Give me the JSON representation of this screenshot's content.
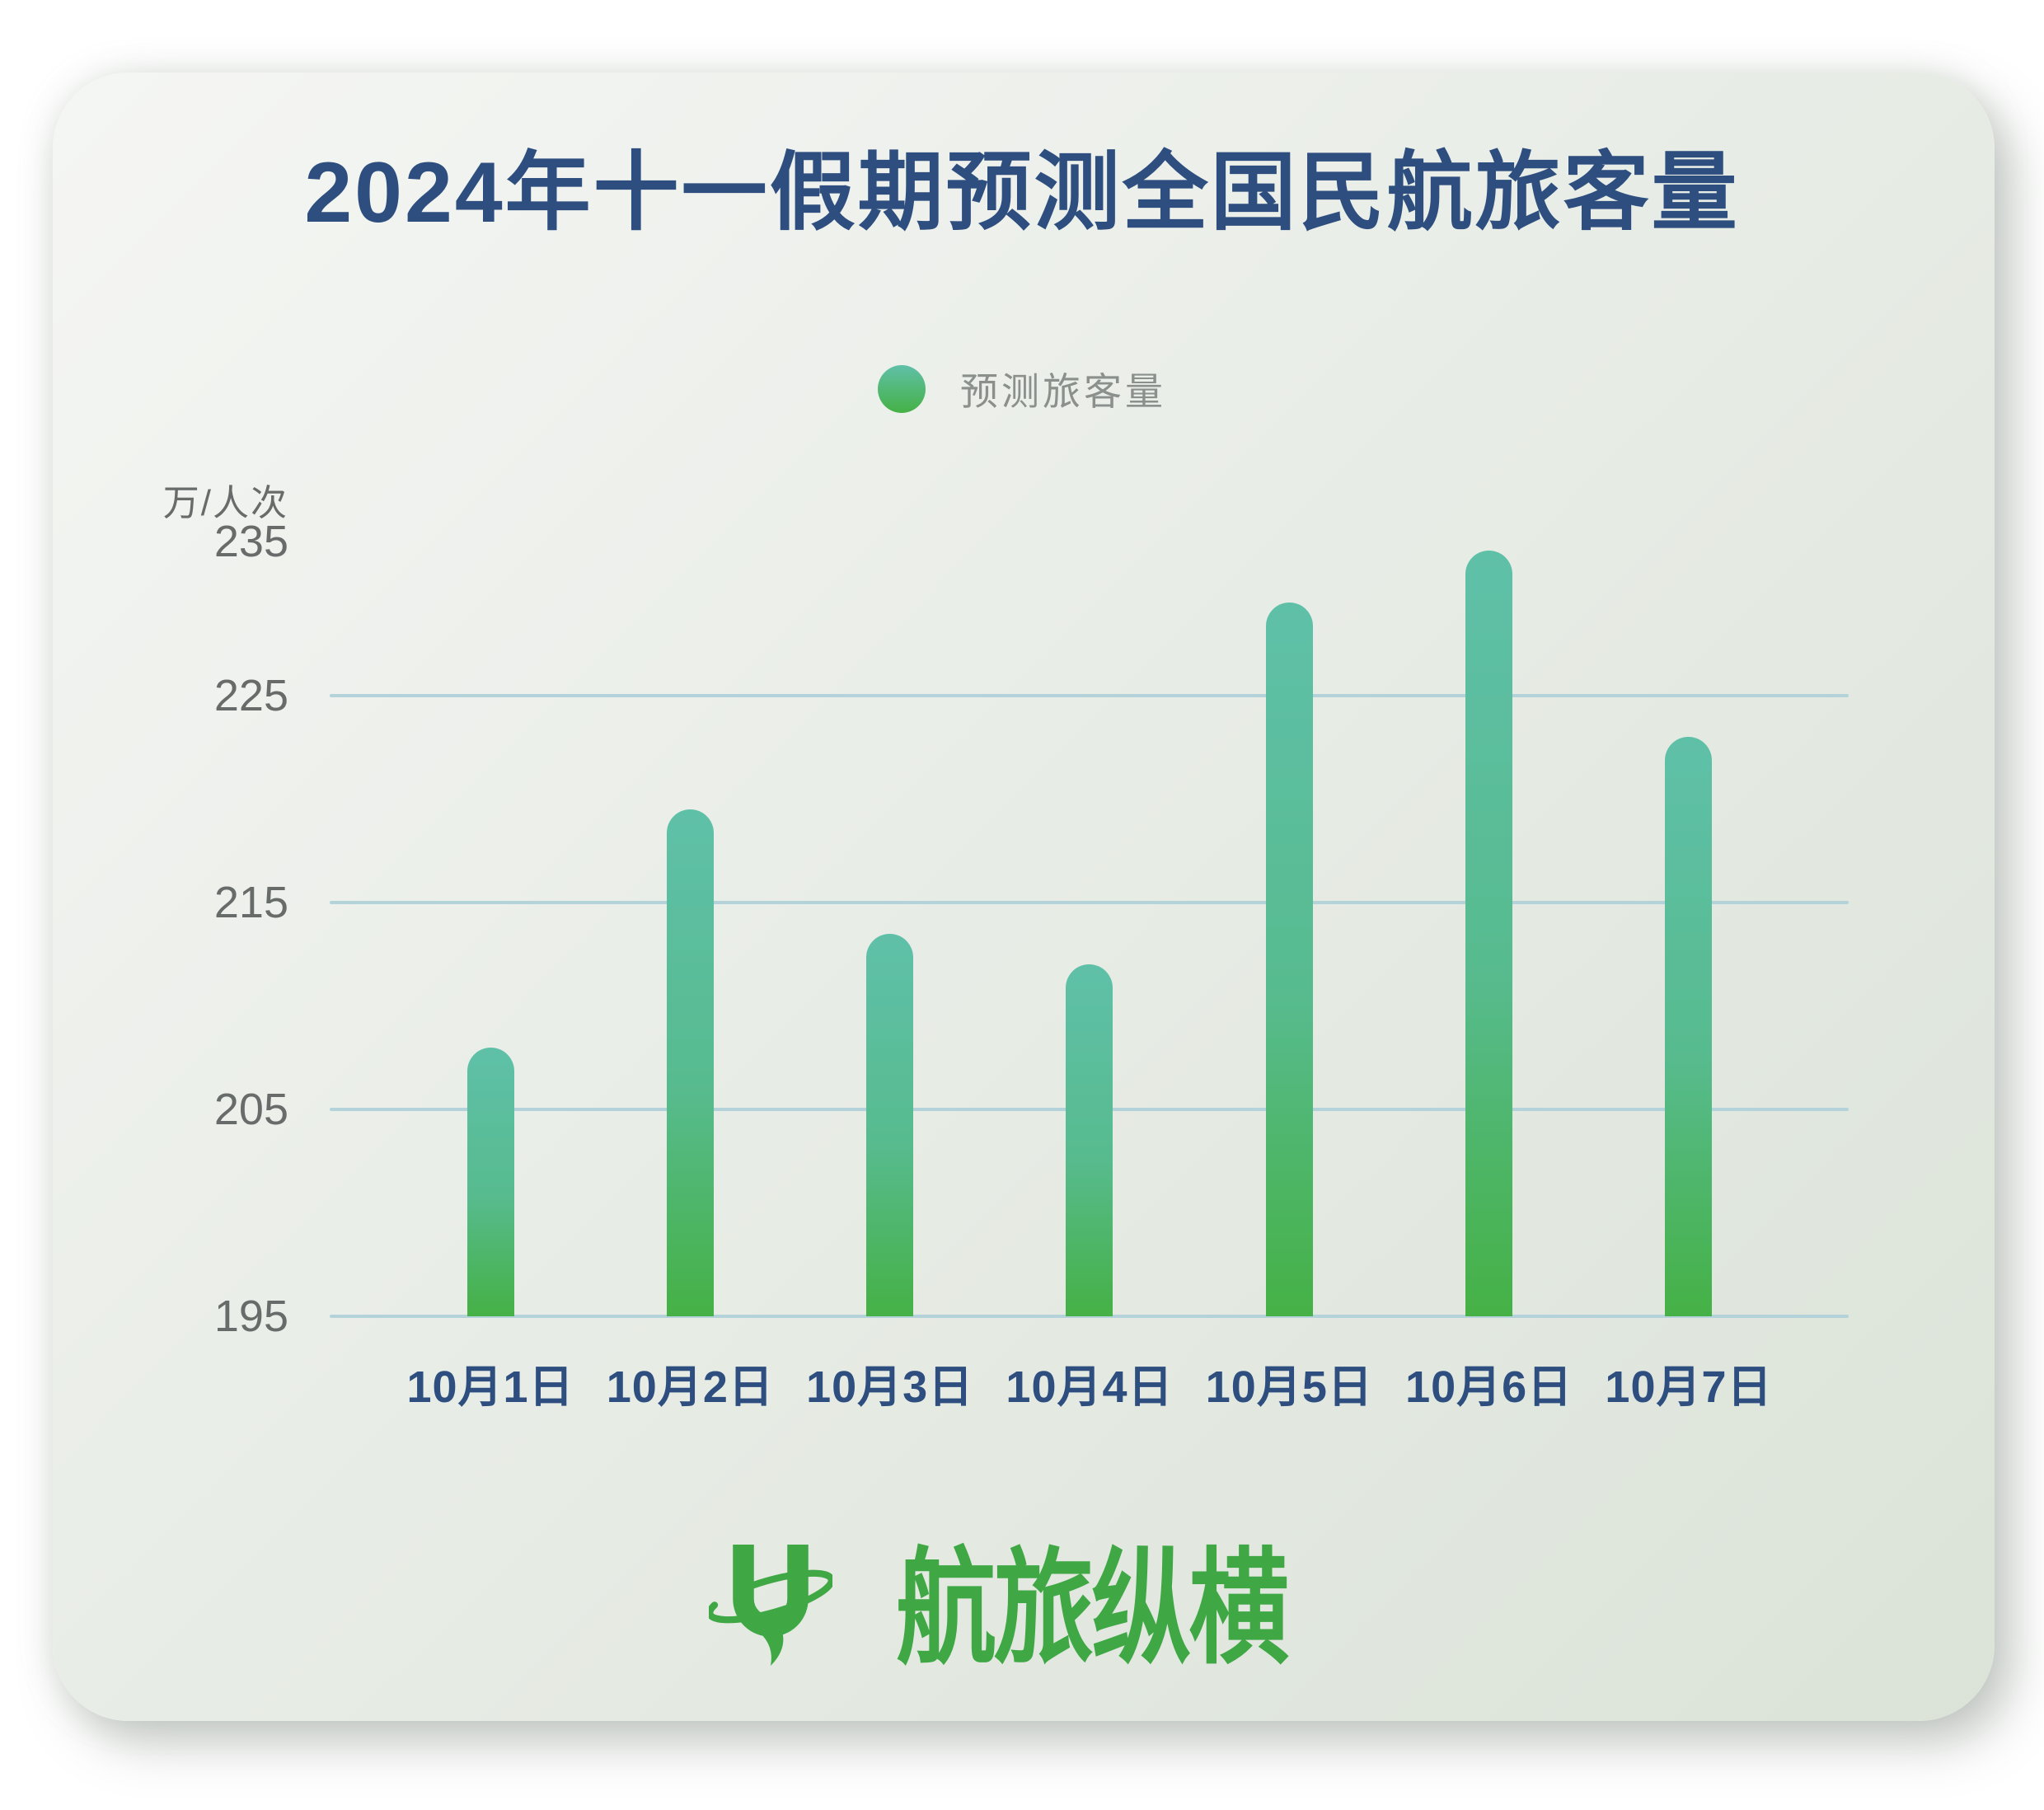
{
  "title": "2024年十一假期预测全国民航旅客量",
  "legend": {
    "label": "预测旅客量"
  },
  "y_axis": {
    "unit": "万/人次",
    "top_tick": "235",
    "ticks": [
      "225",
      "215",
      "205",
      "195"
    ]
  },
  "chart_data": {
    "type": "bar",
    "title": "2024年十一假期预测全国民航旅客量",
    "categories": [
      "10月1日",
      "10月2日",
      "10月3日",
      "10月4日",
      "10月5日",
      "10月6日",
      "10月7日"
    ],
    "series": [
      {
        "name": "预测旅客量",
        "values": [
          208,
          219.5,
          213.5,
          212,
          229.5,
          232,
          223
        ]
      }
    ],
    "xlabel": "",
    "ylabel": "万/人次",
    "ylim": [
      195,
      235
    ],
    "gridlines": [
      195,
      205,
      215,
      225
    ],
    "y_ticks_labeled": [
      235,
      225,
      215,
      205,
      195
    ],
    "grid": true,
    "legend_position": "top",
    "bar_style": "rounded-top-gradient"
  },
  "logo": {
    "text": "航旅纵横"
  },
  "colors": {
    "title_text": "#2d4e7e",
    "axis_text": "#676c6a",
    "legend_text": "#8b908d",
    "gridline": "#b3d2da",
    "bar_gradient_top": "#5fc0a8",
    "bar_gradient_bottom": "#45b145",
    "card_bg_light": "#f5f6f4",
    "card_bg_dark": "#dbe3d8",
    "logo_green": "#3fa845",
    "page_background": "#ffffff"
  }
}
